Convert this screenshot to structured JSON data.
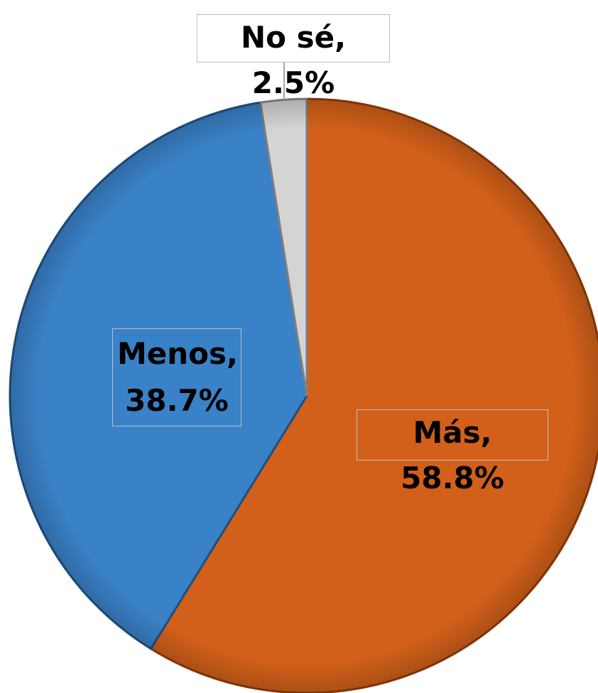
{
  "chart_data": {
    "type": "pie",
    "values": [
      58.8,
      38.7,
      2.5
    ],
    "value_labels": [
      "Más, 58.8%",
      "Menos, 38.7%",
      "No sé, 2.5%"
    ],
    "colors": [
      "#d2601a",
      "#3a82c8",
      "#d4d4d4"
    ]
  }
}
